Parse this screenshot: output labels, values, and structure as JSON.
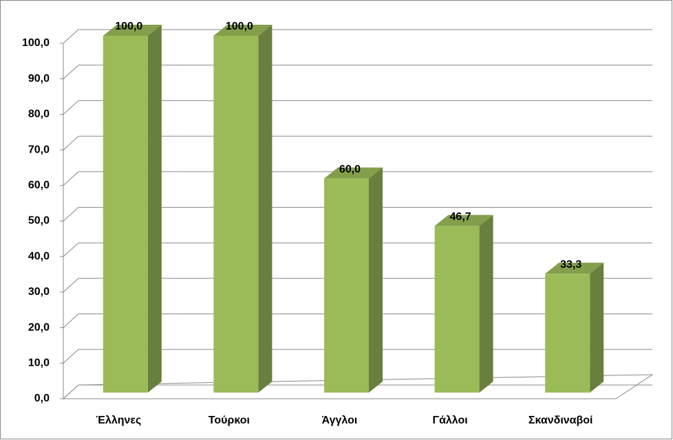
{
  "chart_data": {
    "type": "bar3d",
    "categories": [
      "Έλληνες",
      "Τούρκοι",
      "Άγγλοι",
      "Γάλλοι",
      "Σκανδιναβοί"
    ],
    "values": [
      100,
      100,
      60,
      46.7,
      33.3
    ],
    "value_labels": [
      "100,0",
      "100,0",
      "60,0",
      "46,7",
      "33,3"
    ],
    "color": "#9bbb59",
    "ylim": [
      0,
      100
    ],
    "yticks": [
      {
        "value": 0,
        "label": "0,0"
      },
      {
        "value": 10,
        "label": "10,0"
      },
      {
        "value": 20,
        "label": "20,0"
      },
      {
        "value": 30,
        "label": "30,0"
      },
      {
        "value": 40,
        "label": "40,0"
      },
      {
        "value": 50,
        "label": "50,0"
      },
      {
        "value": 60,
        "label": "60,0"
      },
      {
        "value": 70,
        "label": "70,0"
      },
      {
        "value": 80,
        "label": "80,0"
      },
      {
        "value": 90,
        "label": "90,0"
      },
      {
        "value": 100,
        "label": "100,0"
      }
    ],
    "grid": true
  }
}
